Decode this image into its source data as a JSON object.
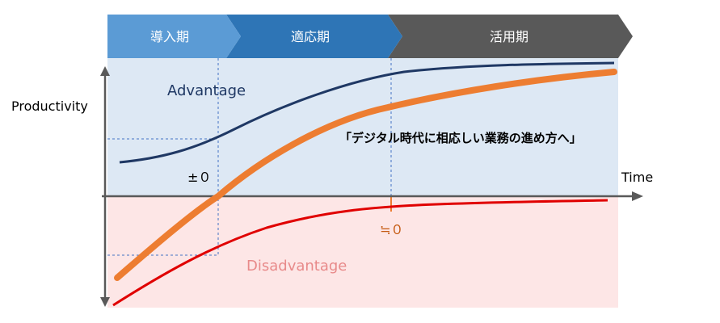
{
  "phases": [
    {
      "label": "導入期",
      "color": "#5b9bd5"
    },
    {
      "label": "適応期",
      "color": "#2e75b6"
    },
    {
      "label": "活用期",
      "color": "#595959"
    }
  ],
  "labels": {
    "y_axis": "Productivity",
    "x_axis": "Time",
    "advantage": "Advantage",
    "disadvantage": "Disadvantage",
    "zero_cross": "±０",
    "approx_zero": "≒０",
    "callout": "「デジタル時代に相応しい業務の進め方へ」"
  },
  "colors": {
    "advantage_region": "#dde8f4",
    "disadvantage_region": "#fde6e6",
    "advantage_curve": "#1f3864",
    "net_curve": "#ed7d31",
    "disadvantage_curve": "#e00000",
    "axis": "#595959",
    "advantage_text": "#1f3864",
    "disadvantage_text": "#e88a8a",
    "approx_text": "#c55a11"
  }
}
